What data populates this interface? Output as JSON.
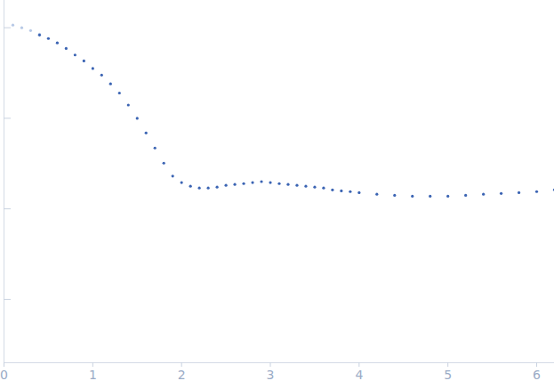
{
  "chart_data": {
    "type": "scatter",
    "log": "y",
    "tick_labels": "x",
    "grid": false,
    "xlim": [
      0,
      6.2
    ],
    "xticks": [
      0,
      1,
      2,
      3,
      4,
      5,
      6
    ],
    "ylim": [
      0.0002,
      2
    ],
    "yticks": [
      0.001,
      0.01,
      0.1,
      1
    ],
    "series": [
      {
        "color": "#b7c9e6",
        "marker": "circle",
        "x": [
          0.1,
          0.2,
          0.3,
          0.4
        ],
        "values": [
          1.07,
          1.0,
          0.93,
          0.85
        ]
      },
      {
        "color": "#3b64b3",
        "marker": "circle",
        "x": [
          0.4,
          0.5,
          0.6,
          0.7,
          0.8,
          0.9,
          1.0,
          1.1,
          1.2,
          1.3,
          1.4,
          1.5,
          1.6,
          1.7,
          1.8,
          1.9,
          2.0,
          2.1,
          2.2,
          2.3,
          2.4,
          2.5,
          2.6,
          2.7,
          2.8,
          2.9,
          3.0,
          3.1,
          3.2,
          3.3,
          3.4,
          3.5,
          3.6,
          3.7,
          3.8,
          3.9,
          4.0,
          4.2,
          4.4,
          4.6,
          4.8,
          5.0,
          5.2,
          5.4,
          5.6,
          5.8,
          6.0,
          6.2
        ],
        "values": [
          0.83,
          0.76,
          0.68,
          0.59,
          0.5,
          0.43,
          0.355,
          0.3,
          0.24,
          0.19,
          0.14,
          0.1,
          0.069,
          0.047,
          0.032,
          0.023,
          0.0195,
          0.0178,
          0.017,
          0.017,
          0.0174,
          0.0182,
          0.0186,
          0.019,
          0.0195,
          0.02,
          0.0195,
          0.019,
          0.0186,
          0.0182,
          0.0178,
          0.0174,
          0.017,
          0.0162,
          0.0158,
          0.0155,
          0.0151,
          0.0145,
          0.0141,
          0.0138,
          0.0138,
          0.0138,
          0.0141,
          0.0145,
          0.0148,
          0.0151,
          0.0155,
          0.0162
        ]
      }
    ]
  }
}
